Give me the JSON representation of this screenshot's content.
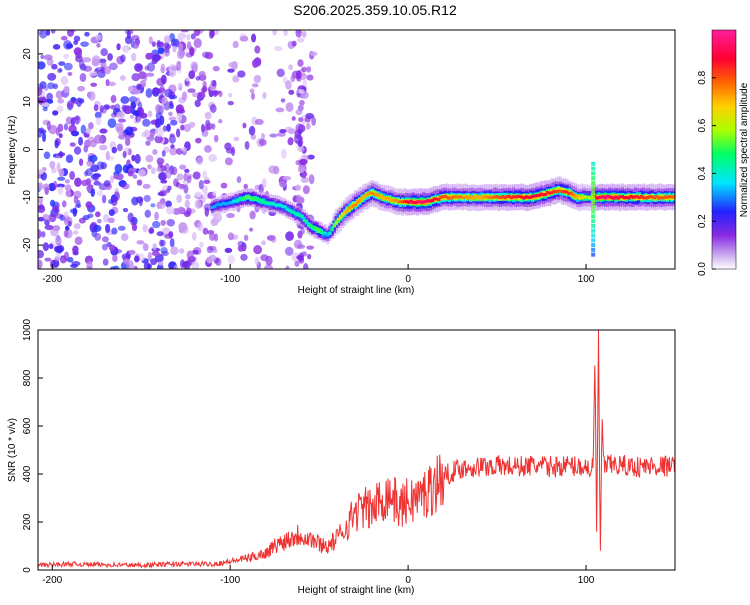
{
  "figure": {
    "title": "S206.2025.359.10.05.R12"
  },
  "chart_data": [
    {
      "type": "heatmap",
      "xlabel": "Height of straight line (km)",
      "ylabel": "Frequency (Hz)",
      "xlim": [
        -208,
        150
      ],
      "ylim": [
        -25,
        25
      ],
      "xticks": [
        -200,
        -100,
        0,
        100
      ],
      "yticks": [
        -20,
        -10,
        0,
        10,
        20
      ],
      "colorbar": {
        "label": "Normalized spectral amplitude",
        "range": [
          0,
          1
        ],
        "ticks": [
          "0.0",
          "0.2",
          "0.4",
          "0.6",
          "0.8"
        ],
        "colormap": [
          "#ffffff",
          "#8a2be2",
          "#2222ff",
          "#00e5ff",
          "#00ff66",
          "#aaff00",
          "#ffd000",
          "#ff6600",
          "#ff0033",
          "#ff1e9a"
        ]
      },
      "ridge": {
        "x": [
          -110,
          -100,
          -90,
          -80,
          -70,
          -60,
          -55,
          -50,
          -45,
          -40,
          -35,
          -30,
          -25,
          -20,
          -15,
          -10,
          -5,
          0,
          10,
          20,
          30,
          40,
          50,
          60,
          70,
          80,
          85,
          90,
          95,
          100,
          102,
          105,
          110,
          120,
          130,
          140,
          150
        ],
        "freq": [
          -12,
          -11,
          -10,
          -11,
          -12,
          -14,
          -16,
          -17,
          -18,
          -15,
          -13,
          -11.5,
          -10,
          -9,
          -10,
          -10.5,
          -11,
          -11,
          -11,
          -10,
          -10,
          -10,
          -10,
          -10,
          -10,
          -9,
          -8.5,
          -9,
          -10,
          -10,
          -10,
          -10,
          -10,
          -10,
          -10,
          -10,
          -10
        ],
        "amplitude": [
          0.3,
          0.3,
          0.5,
          0.4,
          0.35,
          0.4,
          0.45,
          0.5,
          0.3,
          0.6,
          0.7,
          0.75,
          0.7,
          0.75,
          0.7,
          0.7,
          0.75,
          0.9,
          0.95,
          0.8,
          0.75,
          0.7,
          0.8,
          0.85,
          0.9,
          0.85,
          0.8,
          0.85,
          0.7,
          0.6,
          0.5,
          0.9,
          0.95,
          0.9,
          0.85,
          0.8,
          0.8
        ]
      }
    },
    {
      "type": "line",
      "xlabel": "Height of straight line (km)",
      "ylabel": "SNR (10 * v/v)",
      "xlim": [
        -208,
        150
      ],
      "ylim": [
        0,
        1000
      ],
      "xticks": [
        -200,
        -100,
        0,
        100
      ],
      "yticks": [
        0,
        200,
        400,
        600,
        800,
        1000
      ],
      "color": "#ee3333",
      "series": [
        {
          "x": [
            -208,
            -190,
            -170,
            -150,
            -130,
            -110,
            -100,
            -90,
            -80,
            -75,
            -70,
            -65,
            -60,
            -55,
            -50,
            -45,
            -40,
            -35,
            -30,
            -25,
            -20,
            -15,
            -10,
            -5,
            0,
            5,
            10,
            15,
            20,
            25,
            30,
            40,
            50,
            60,
            70,
            80,
            90,
            100,
            104,
            105,
            106,
            107,
            108,
            109,
            110,
            115,
            120,
            130,
            140,
            150
          ],
          "values": [
            20,
            25,
            22,
            20,
            25,
            25,
            35,
            50,
            70,
            100,
            120,
            140,
            150,
            130,
            110,
            100,
            130,
            180,
            240,
            260,
            250,
            300,
            320,
            260,
            290,
            300,
            320,
            360,
            390,
            410,
            425,
            430,
            435,
            430,
            435,
            430,
            435,
            430,
            420,
            900,
            120,
            1000,
            50,
            650,
            430,
            440,
            435,
            430,
            435,
            430
          ]
        }
      ]
    }
  ]
}
